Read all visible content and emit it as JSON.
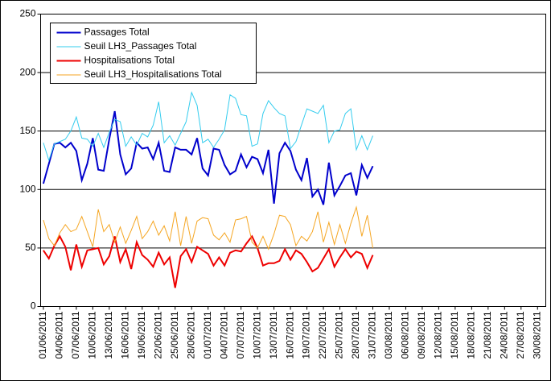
{
  "chart_data": {
    "type": "line",
    "categories": [
      "01/06/2011",
      null,
      null,
      "04/06/2011",
      null,
      null,
      "07/06/2011",
      null,
      null,
      "10/06/2011",
      null,
      null,
      "13/06/2011",
      null,
      null,
      "16/06/2011",
      null,
      null,
      "19/06/2011",
      null,
      null,
      "22/06/2011",
      null,
      null,
      "25/06/2011",
      null,
      null,
      "28/06/2011",
      null,
      null,
      "01/07/2011",
      null,
      null,
      "04/07/2011",
      null,
      null,
      "07/07/2011",
      null,
      null,
      "10/07/2011",
      null,
      null,
      "13/07/2011",
      null,
      null,
      "16/07/2011",
      null,
      null,
      "19/07/2011",
      null,
      null,
      "22/07/2011",
      null,
      null,
      "25/07/2011",
      null,
      null,
      "28/07/2011",
      null,
      null,
      "31/07/2011",
      null,
      null,
      "03/08/2011",
      null,
      null,
      "06/08/2011",
      null,
      null,
      "09/08/2011",
      null,
      null,
      "12/08/2011",
      null,
      null,
      "15/08/2011",
      null,
      null,
      "18/08/2011",
      null,
      null,
      "21/08/2011",
      null,
      null,
      "24/08/2011",
      null,
      null,
      "27/08/2011",
      null,
      null,
      "30/08/2011",
      null
    ],
    "series": [
      {
        "name": "Passages Total",
        "color": "#0000cc",
        "values": [
          105,
          122,
          139,
          140,
          136,
          140,
          133,
          108,
          122,
          144,
          117,
          116,
          143,
          167,
          130,
          113,
          118,
          140,
          135,
          136,
          126,
          140,
          116,
          115,
          136,
          134,
          134,
          130,
          144,
          118,
          112,
          135,
          134,
          121,
          113,
          116,
          130,
          119,
          128,
          126,
          114,
          134,
          88,
          131,
          140,
          133,
          117,
          108,
          127,
          94,
          100,
          87,
          123,
          95,
          103,
          112,
          114,
          95,
          121,
          110,
          120,
          null,
          null,
          null,
          null,
          null,
          null,
          null,
          null,
          null,
          null,
          null,
          null,
          null,
          null,
          null,
          null,
          null,
          null,
          null,
          null,
          null,
          null,
          null,
          null,
          null,
          null,
          null,
          null,
          null,
          null,
          null
        ]
      },
      {
        "name": "Seuil LH3_Passages Total",
        "color": "#33ccee",
        "values": [
          140,
          125,
          139,
          141,
          143,
          150,
          162,
          144,
          143,
          137,
          148,
          136,
          149,
          160,
          158,
          137,
          145,
          138,
          148,
          145,
          155,
          175,
          140,
          146,
          138,
          148,
          158,
          183,
          172,
          140,
          143,
          136,
          143,
          151,
          181,
          178,
          164,
          163,
          137,
          139,
          165,
          176,
          170,
          165,
          163,
          135,
          141,
          155,
          169,
          167,
          165,
          172,
          140,
          150,
          151,
          165,
          169,
          134,
          146,
          134,
          146,
          null,
          null,
          null,
          null,
          null,
          null,
          null,
          null,
          null,
          null,
          null,
          null,
          null,
          null,
          null,
          null,
          null,
          null,
          null,
          null,
          null,
          null,
          null,
          null,
          null,
          null,
          null,
          null,
          null,
          null,
          null
        ]
      },
      {
        "name": "Hospitalisations Total",
        "color": "#ee0000",
        "values": [
          48,
          41,
          52,
          60,
          51,
          31,
          53,
          34,
          48,
          49,
          50,
          36,
          43,
          60,
          38,
          49,
          32,
          55,
          44,
          40,
          34,
          46,
          36,
          42,
          16,
          43,
          49,
          38,
          51,
          48,
          45,
          35,
          42,
          35,
          46,
          48,
          47,
          54,
          60,
          50,
          35,
          37,
          37,
          39,
          49,
          40,
          48,
          45,
          38,
          30,
          33,
          41,
          49,
          34,
          42,
          49,
          42,
          47,
          45,
          33,
          44,
          null,
          null,
          null,
          null,
          null,
          null,
          null,
          null,
          null,
          null,
          null,
          null,
          null,
          null,
          null,
          null,
          null,
          null,
          null,
          null,
          null,
          null,
          null,
          null,
          null,
          null,
          null,
          null,
          null,
          null,
          null
        ]
      },
      {
        "name": "Seuil LH3_Hospitalisations Total",
        "color": "#f5a623",
        "values": [
          74,
          58,
          52,
          63,
          70,
          64,
          66,
          77,
          64,
          51,
          83,
          64,
          70,
          55,
          68,
          54,
          65,
          77,
          58,
          64,
          73,
          61,
          69,
          56,
          81,
          52,
          77,
          54,
          73,
          76,
          75,
          61,
          57,
          63,
          55,
          74,
          75,
          77,
          55,
          50,
          60,
          49,
          62,
          78,
          77,
          70,
          52,
          60,
          56,
          64,
          81,
          55,
          72,
          53,
          70,
          54,
          71,
          85,
          60,
          78,
          50,
          null,
          null,
          null,
          null,
          null,
          null,
          null,
          null,
          null,
          null,
          null,
          null,
          null,
          null,
          null,
          null,
          null,
          null,
          null,
          null,
          null,
          null,
          null,
          null,
          null,
          null,
          null,
          null,
          null,
          null,
          null
        ]
      }
    ],
    "ylim": [
      0,
      250
    ],
    "yticks": [
      0,
      50,
      100,
      150,
      200,
      250
    ],
    "grid": true,
    "legend": "top-left"
  }
}
